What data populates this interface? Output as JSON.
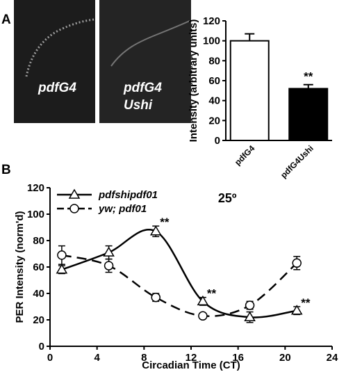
{
  "panel_labels": [
    "A",
    "B"
  ],
  "images": [
    {
      "label": [
        "pdfG4"
      ]
    },
    {
      "label": [
        "pdfG4",
        "Ushi"
      ]
    }
  ],
  "chart_data": [
    {
      "type": "bar",
      "ylabel": "Intensity (arbitrary units)",
      "categories": [
        "pdfG4",
        "pdfG4Ushi"
      ],
      "values": [
        100,
        52
      ],
      "errors": [
        7,
        4
      ],
      "colors": [
        "#ffffff",
        "#000000"
      ],
      "ylim": [
        0,
        120
      ],
      "yticks": [
        0,
        20,
        40,
        60,
        80,
        100,
        120
      ],
      "annotations": [
        {
          "text": "**",
          "x": "pdfG4Ushi",
          "y": 56
        }
      ]
    },
    {
      "type": "line",
      "xlabel": "Circadian Time (CT)",
      "ylabel": "PER Intensity (norm'd)",
      "x": [
        1,
        5,
        9,
        13,
        17,
        21
      ],
      "series": [
        {
          "name": "pdfshipdf01",
          "color": "#000000",
          "marker": "triangle",
          "linestyle": "solid",
          "values": [
            58,
            71,
            87,
            34,
            22,
            27
          ],
          "errors": [
            3,
            5,
            4,
            3,
            4,
            3
          ]
        },
        {
          "name": "yw; pdf01",
          "color": "#000000",
          "marker": "circle",
          "linestyle": "dashed",
          "values": [
            69,
            61,
            37,
            23,
            31,
            63
          ],
          "errors": [
            7,
            5,
            3,
            1,
            3,
            5
          ]
        }
      ],
      "xlim": [
        0,
        24
      ],
      "xticks": [
        0,
        4,
        8,
        12,
        16,
        20,
        24
      ],
      "ylim": [
        0,
        120
      ],
      "yticks": [
        0,
        20,
        40,
        60,
        80,
        100,
        120
      ],
      "legend": "upper left",
      "annotations": [
        {
          "text": "25º",
          "x": 14.3,
          "y": 112
        },
        {
          "text": "**",
          "x": 9,
          "y": 91
        },
        {
          "text": "**",
          "x": 13,
          "y": 37
        },
        {
          "text": "**",
          "x": 21,
          "y": 30
        }
      ]
    }
  ]
}
